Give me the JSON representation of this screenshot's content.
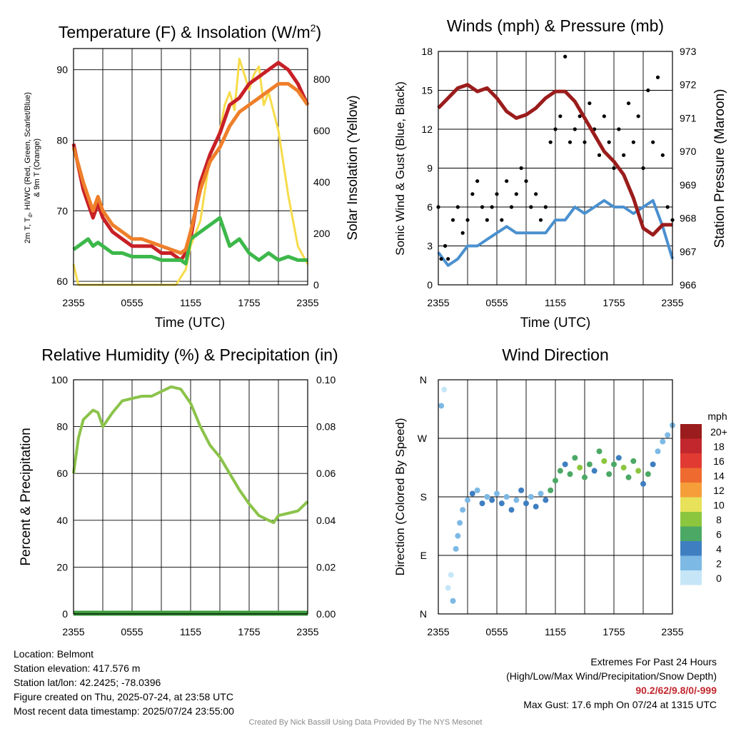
{
  "chart_data": [
    {
      "type": "line",
      "title": "Temperature (F) & Insolation (W/m",
      "title_sup": "2",
      "title_close": ")",
      "ylabel_lines": [
        "2m T, T",
        "d",
        ", HI/WC (Red, Green, Scarlet/Blue)",
        "& 9m T (Orange)"
      ],
      "y2label": "Solar Insolation (Yellow)",
      "xlabel": "Time (UTC)",
      "xticks": [
        "2355",
        "0555",
        "1155",
        "1755",
        "2355"
      ],
      "yticks": [
        60,
        70,
        80,
        90
      ],
      "y2ticks": [
        0,
        200,
        400,
        600,
        800
      ],
      "ylim": [
        59.5,
        93
      ],
      "y2lim": [
        0,
        920
      ],
      "x_hours": [
        0,
        1,
        1.5,
        2,
        2.5,
        3,
        4,
        5,
        6,
        7,
        8,
        9,
        10,
        11,
        11.5,
        12,
        13,
        14,
        15,
        16,
        17,
        18,
        19,
        20,
        21,
        22,
        23,
        24
      ],
      "series": [
        {
          "color": "#c82027",
          "values": [
            79.5,
            73,
            71,
            69,
            71,
            69,
            67,
            66,
            65,
            65,
            65,
            64,
            64,
            63,
            64,
            66,
            74,
            78,
            81,
            85,
            86,
            88,
            89,
            90,
            91,
            90,
            88,
            85
          ]
        },
        {
          "color": "#3db84a",
          "values": [
            64.5,
            65.5,
            66,
            65,
            65.5,
            65,
            64,
            64,
            63.5,
            63.5,
            63.5,
            63,
            63,
            63,
            62.5,
            66,
            67,
            68,
            69,
            65,
            66,
            64,
            63,
            64,
            63,
            63.5,
            63,
            63
          ]
        },
        {
          "color": "#ef7f2a",
          "values": [
            79,
            74,
            72,
            70,
            72,
            70,
            68,
            67,
            66,
            66,
            65.5,
            65,
            64.5,
            64,
            64.5,
            67,
            73,
            77,
            79,
            82,
            84,
            85,
            86,
            87,
            88,
            88,
            87,
            85
          ]
        }
      ],
      "insolation": {
        "color": "#f7dc4a",
        "x_hours": [
          0,
          0.5,
          1,
          3,
          5,
          7,
          9,
          10.5,
          11.5,
          12,
          13,
          14,
          15,
          15.5,
          16,
          16.5,
          17,
          17.5,
          18,
          18.5,
          19,
          19.5,
          20,
          21,
          22,
          23,
          24
        ],
        "values": [
          80,
          0,
          0,
          0,
          0,
          0,
          0,
          0,
          60,
          150,
          250,
          500,
          600,
          700,
          750,
          680,
          880,
          820,
          760,
          820,
          850,
          700,
          750,
          600,
          350,
          150,
          80
        ]
      }
    },
    {
      "type": "scatter",
      "title": "Winds (mph) & Pressure (mb)",
      "ylabel": "Sonic Wind & Gust (Blue, Black)",
      "y2label": "Station Pressure (Maroon)",
      "xlabel": "Time (UTC)",
      "xticks": [
        "2355",
        "0555",
        "1155",
        "1755",
        "2355"
      ],
      "yticks": [
        0,
        3,
        6,
        9,
        12,
        15,
        18
      ],
      "y2ticks": [
        966,
        967,
        968,
        969,
        970,
        971,
        972,
        973
      ],
      "ylim": [
        0,
        18
      ],
      "y2lim": [
        966,
        973
      ],
      "wind_color": "#4a90cf",
      "wind": {
        "x_hours": [
          0,
          1,
          2,
          3,
          4,
          5,
          6,
          7,
          8,
          9,
          10,
          11,
          12,
          13,
          14,
          15,
          16,
          17,
          18,
          19,
          20,
          21,
          22,
          23,
          24
        ],
        "values": [
          2.5,
          1.5,
          2,
          3,
          3,
          3.5,
          4,
          4.5,
          4,
          4,
          4,
          4,
          5,
          5,
          6,
          5.5,
          6,
          6.5,
          6,
          6,
          5.5,
          6,
          6.5,
          4.5,
          2
        ]
      },
      "gust_color": "#000000",
      "gust": {
        "x_hours": [
          0,
          0.3,
          0.7,
          1,
          1.5,
          2,
          2.5,
          3,
          3.5,
          4,
          4.5,
          5,
          5.5,
          6,
          6.5,
          7,
          7.5,
          8,
          8.5,
          9,
          9.5,
          10,
          10.5,
          11,
          11.5,
          12,
          12.5,
          13,
          13.5,
          14,
          14.5,
          15,
          15.5,
          16,
          16.5,
          17,
          17.5,
          18,
          18.5,
          19,
          19.5,
          20,
          20.5,
          21,
          21.5,
          22,
          22.5,
          23,
          23.5,
          24
        ],
        "values": [
          6,
          2,
          3,
          2,
          5,
          6,
          4,
          5,
          7,
          8,
          6,
          5,
          6,
          7,
          5,
          8,
          6,
          7,
          9,
          8,
          6,
          7,
          5,
          6,
          11,
          12,
          13,
          17.6,
          11,
          12,
          13,
          11,
          14,
          12,
          10,
          13,
          11,
          9,
          12,
          10,
          14,
          11,
          13,
          9,
          15,
          11,
          16,
          10,
          6,
          5
        ]
      },
      "pressure_color": "#9b1c1c",
      "pressure": {
        "x_hours": [
          0,
          1,
          2,
          3,
          4,
          5,
          6,
          7,
          8,
          9,
          10,
          11,
          12,
          13,
          14,
          15,
          16,
          17,
          18,
          19,
          20,
          21,
          22,
          23,
          24
        ],
        "values": [
          971.3,
          971.6,
          971.9,
          972.0,
          971.8,
          971.9,
          971.6,
          971.2,
          971.0,
          971.1,
          971.3,
          971.6,
          971.8,
          971.8,
          971.5,
          971.0,
          970.5,
          970.0,
          969.7,
          969.3,
          968.6,
          967.7,
          967.5,
          967.8,
          967.8
        ]
      }
    },
    {
      "type": "line",
      "title": "Relative Humidity (%) & Precipitation (in)",
      "ylabel": "Percent & Precipitation",
      "xlabel": "",
      "xticks": [
        "2355",
        "0555",
        "1155",
        "1755",
        "2355"
      ],
      "yticks": [
        0,
        20,
        40,
        60,
        80,
        100
      ],
      "y2ticks": [
        "0.00",
        "0.02",
        "0.04",
        "0.06",
        "0.08",
        "0.10"
      ],
      "ylim": [
        0,
        100
      ],
      "y2lim": [
        0,
        0.1
      ],
      "humidity": {
        "color": "#8bc34a",
        "x_hours": [
          0,
          0.5,
          1,
          2,
          2.5,
          3,
          4,
          5,
          6,
          7,
          8,
          9,
          10,
          11,
          12,
          13,
          14,
          15,
          16,
          17,
          18,
          19,
          20,
          20.5,
          21,
          22,
          23,
          24
        ],
        "values": [
          60,
          75,
          83,
          87,
          86,
          80,
          86,
          91,
          92,
          93,
          93,
          95,
          97,
          96,
          90,
          80,
          72,
          67,
          60,
          53,
          47,
          42,
          40,
          39,
          42,
          43,
          44,
          48
        ]
      },
      "precipitation": {
        "color": "#3d9b3d",
        "values": [
          0,
          0
        ]
      }
    },
    {
      "type": "scatter",
      "title": "Wind Direction",
      "ylabel": "Direction (Colored By Speed)",
      "xticks": [
        "2355",
        "0555",
        "1155",
        "1755",
        "2355"
      ],
      "yticks": [
        "N",
        "E",
        "S",
        "W",
        "N"
      ],
      "ylim": [
        0,
        360
      ],
      "colorbar_title": "mph",
      "colorbar_labels": [
        "20+",
        "18",
        "16",
        "14",
        "12",
        "10",
        "8",
        "6",
        "4",
        "2",
        "0"
      ],
      "colorbar_colors": [
        "#9b1c1c",
        "#c1272d",
        "#e03a32",
        "#ef6a2e",
        "#f59e3a",
        "#e8e15a",
        "#8cc63f",
        "#4ca865",
        "#3f7fc1",
        "#7db9e5",
        "#c6e6f7"
      ],
      "points": [
        {
          "x": 0.3,
          "d": 320
        },
        {
          "x": 0.6,
          "d": 345
        },
        {
          "x": 1,
          "d": 40
        },
        {
          "x": 1.3,
          "d": 60
        },
        {
          "x": 1.5,
          "d": 20
        },
        {
          "x": 1.8,
          "d": 100
        },
        {
          "x": 2,
          "d": 120
        },
        {
          "x": 2.2,
          "d": 140
        },
        {
          "x": 2.5,
          "d": 160
        },
        {
          "x": 3,
          "d": 175
        },
        {
          "x": 3.5,
          "d": 185
        },
        {
          "x": 4,
          "d": 190
        },
        {
          "x": 4.5,
          "d": 170
        },
        {
          "x": 5,
          "d": 180
        },
        {
          "x": 5.5,
          "d": 175
        },
        {
          "x": 6,
          "d": 185
        },
        {
          "x": 6.5,
          "d": 170
        },
        {
          "x": 7,
          "d": 180
        },
        {
          "x": 7.5,
          "d": 160
        },
        {
          "x": 8,
          "d": 175
        },
        {
          "x": 8.5,
          "d": 190
        },
        {
          "x": 9,
          "d": 170
        },
        {
          "x": 9.5,
          "d": 180
        },
        {
          "x": 10,
          "d": 165
        },
        {
          "x": 10.5,
          "d": 185
        },
        {
          "x": 11,
          "d": 175
        },
        {
          "x": 11.5,
          "d": 190
        },
        {
          "x": 12,
          "d": 205
        },
        {
          "x": 12.5,
          "d": 220
        },
        {
          "x": 13,
          "d": 230
        },
        {
          "x": 13.5,
          "d": 215
        },
        {
          "x": 14,
          "d": 240
        },
        {
          "x": 14.5,
          "d": 225
        },
        {
          "x": 15,
          "d": 210
        },
        {
          "x": 15.5,
          "d": 230
        },
        {
          "x": 16,
          "d": 220
        },
        {
          "x": 16.5,
          "d": 250
        },
        {
          "x": 17,
          "d": 235
        },
        {
          "x": 17.5,
          "d": 215
        },
        {
          "x": 18,
          "d": 230
        },
        {
          "x": 18.5,
          "d": 240
        },
        {
          "x": 19,
          "d": 225
        },
        {
          "x": 19.5,
          "d": 210
        },
        {
          "x": 20,
          "d": 235
        },
        {
          "x": 20.5,
          "d": 220
        },
        {
          "x": 21,
          "d": 200
        },
        {
          "x": 21.5,
          "d": 215
        },
        {
          "x": 22,
          "d": 230
        },
        {
          "x": 22.5,
          "d": 250
        },
        {
          "x": 23,
          "d": 265
        },
        {
          "x": 23.5,
          "d": 275
        },
        {
          "x": 24,
          "d": 290
        }
      ],
      "point_speeds": [
        2,
        1,
        1,
        1,
        2,
        2,
        3,
        3,
        3,
        3,
        4,
        3,
        4,
        3,
        4,
        3,
        4,
        3,
        4,
        3,
        4,
        4,
        3,
        4,
        3,
        5,
        6,
        7,
        6,
        5,
        7,
        6,
        8,
        6,
        7,
        5,
        6,
        8,
        6,
        7,
        5,
        9,
        7,
        6,
        8,
        5,
        6,
        4,
        3,
        3,
        3,
        2
      ]
    }
  ],
  "footer": {
    "location": "Location: Belmont",
    "elevation": "Station elevation: 417.576 m",
    "latlon": "Station lat/lon: 42.2425; -78.0396",
    "created": "Figure created on Thu, 2025-07-24, at 23:58 UTC",
    "recent": "Most recent data timestamp: 2025/07/24 23:55:00",
    "extremes_title": "Extremes For Past 24 Hours",
    "extremes_legend": "(High/Low/Max Wind/Precipitation/Snow Depth)",
    "extremes_values": "90.2/62/9.8/0/-999",
    "max_gust": "Max Gust: 17.6 mph On 07/24 at 1315 UTC",
    "credit": "Created By Nick Bassill Using Data Provided By The NYS Mesonet"
  }
}
